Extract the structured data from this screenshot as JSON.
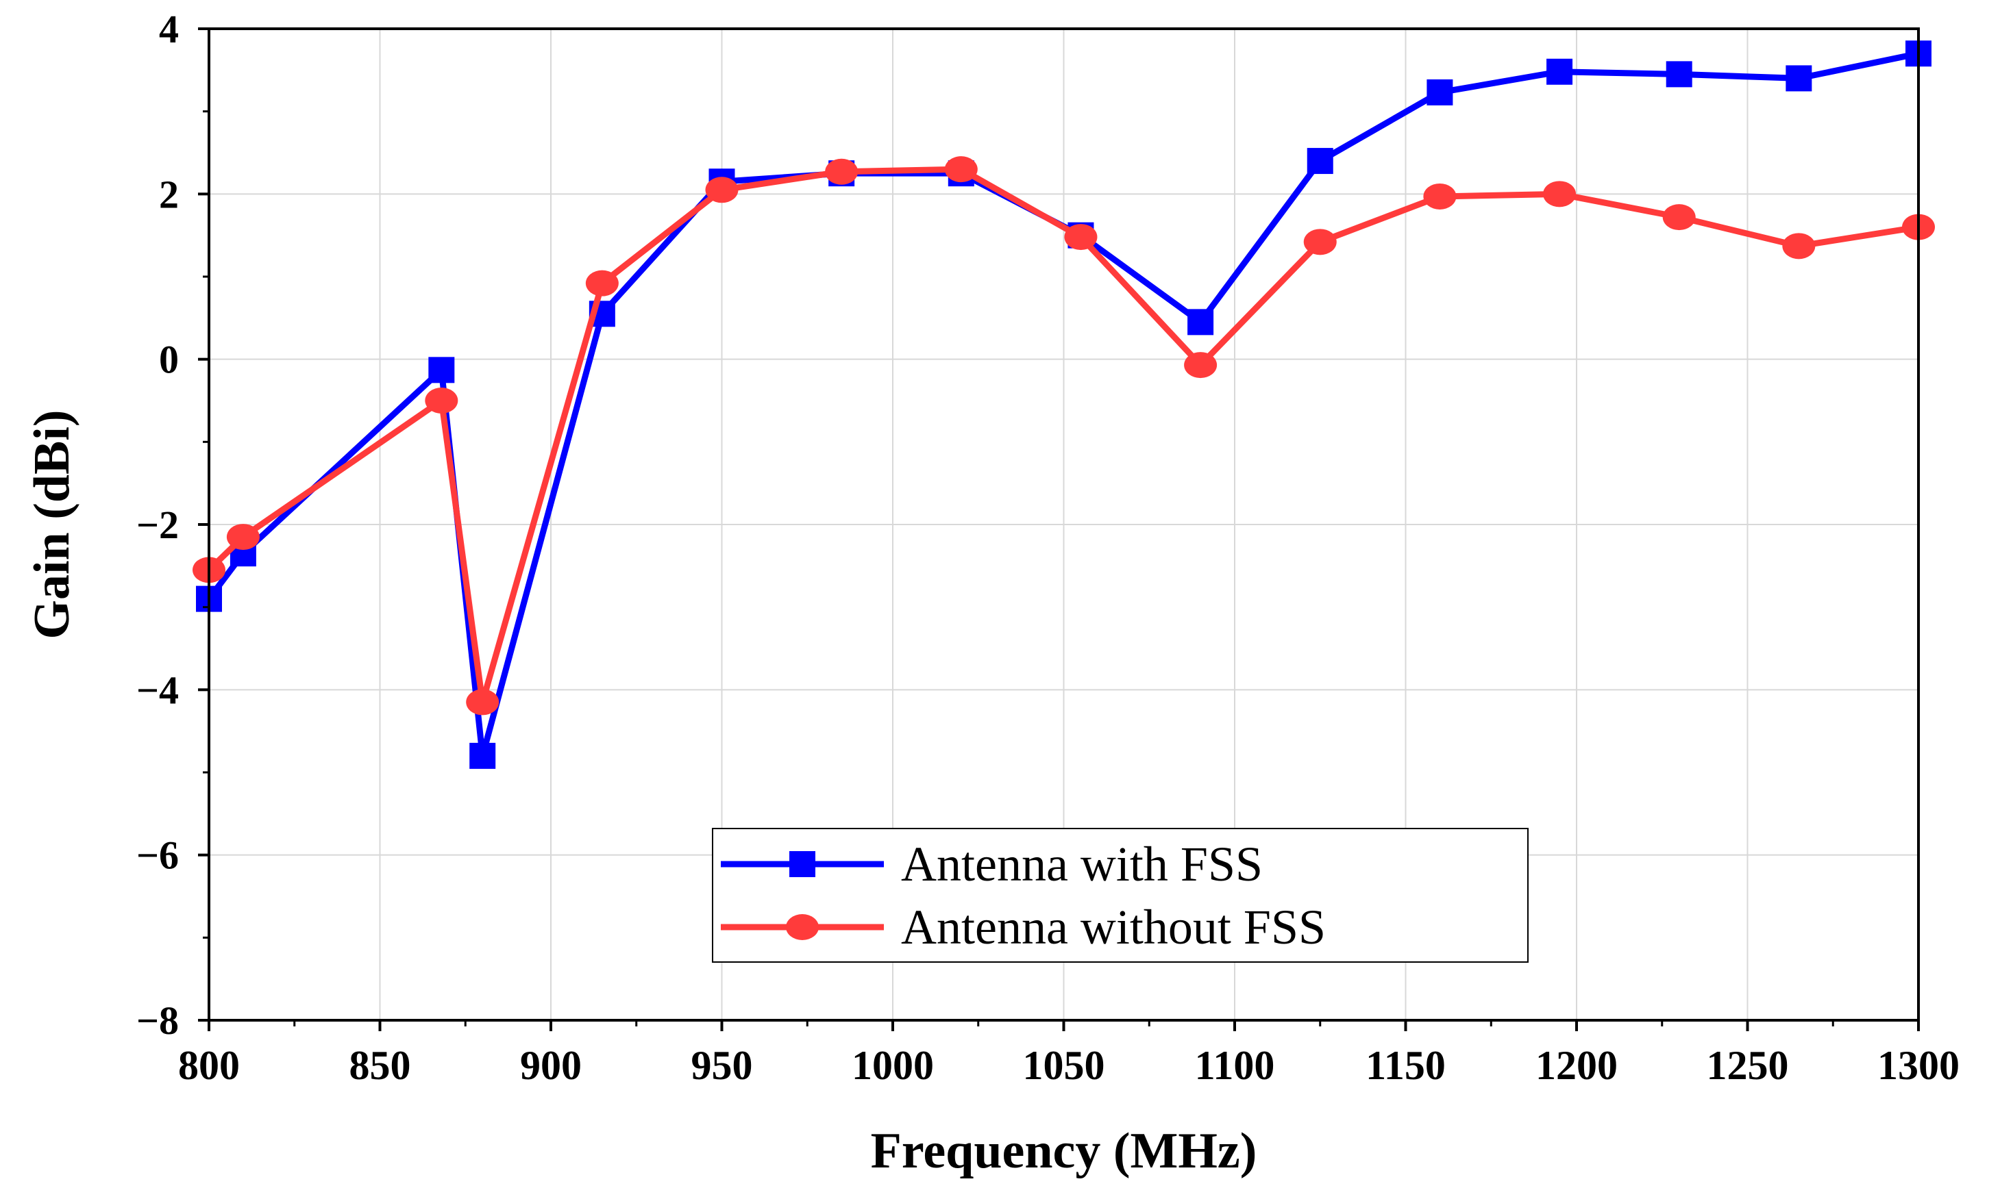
{
  "chart_data": {
    "type": "line",
    "title": "",
    "xlabel": "Frequency (MHz)",
    "ylabel": "Gain (dBi)",
    "xlim": [
      800,
      1300
    ],
    "ylim": [
      -8,
      4
    ],
    "xticks": [
      800,
      850,
      900,
      950,
      1000,
      1050,
      1100,
      1150,
      1200,
      1250,
      1300
    ],
    "yticks": [
      -8,
      -6,
      -4,
      -2,
      0,
      2,
      4
    ],
    "ytick_labels": [
      "−8",
      "−6",
      "−4",
      "−2",
      "0",
      "2",
      "4"
    ],
    "grid": true,
    "legend_position": "bottom-center",
    "series": [
      {
        "name": "Antenna with FSS",
        "color": "#0000ff",
        "marker": "square",
        "x": [
          800,
          810,
          868,
          880,
          915,
          950,
          985,
          1020,
          1055,
          1090,
          1125,
          1160,
          1195,
          1230,
          1265,
          1300
        ],
        "y": [
          -2.9,
          -2.35,
          -0.13,
          -4.8,
          0.55,
          2.15,
          2.25,
          2.25,
          1.5,
          0.45,
          2.4,
          3.23,
          3.48,
          3.45,
          3.4,
          3.7
        ]
      },
      {
        "name": "Antenna without FSS",
        "color": "#ff3b3b",
        "marker": "circle",
        "x": [
          800,
          810,
          868,
          880,
          915,
          950,
          985,
          1020,
          1055,
          1090,
          1125,
          1160,
          1195,
          1230,
          1265,
          1300
        ],
        "y": [
          -2.55,
          -2.15,
          -0.5,
          -4.15,
          0.92,
          2.05,
          2.27,
          2.3,
          1.48,
          -0.07,
          1.42,
          1.97,
          2.0,
          1.72,
          1.37,
          1.6
        ]
      }
    ]
  }
}
